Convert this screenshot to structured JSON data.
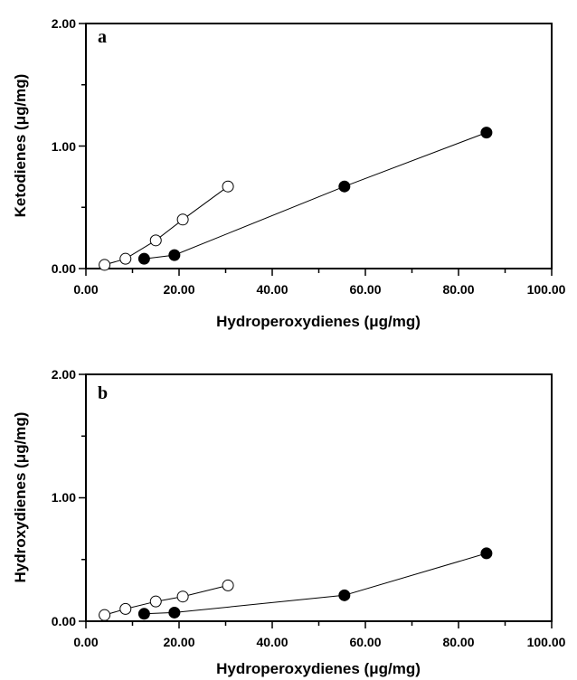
{
  "chart_data": [
    {
      "type": "scatter",
      "panel_label": "a",
      "xlabel": "Hydroperoxydienes (μg/mg)",
      "ylabel": "Ketodienes (μg/mg)",
      "xlim": [
        0,
        100
      ],
      "ylim": [
        0,
        2
      ],
      "xticks": [
        "0.00",
        "20.00",
        "40.00",
        "60.00",
        "80.00",
        "100.00"
      ],
      "yticks": [
        "0.00",
        "1.00",
        "2.00"
      ],
      "grid": false,
      "series": [
        {
          "marker": "open-circle",
          "x": [
            4.0,
            8.5,
            15.0,
            20.8,
            30.5
          ],
          "y": [
            0.03,
            0.08,
            0.23,
            0.4,
            0.67
          ]
        },
        {
          "marker": "filled-circle",
          "x": [
            12.5,
            19.0,
            55.5,
            86.0
          ],
          "y": [
            0.08,
            0.11,
            0.67,
            1.11
          ]
        }
      ]
    },
    {
      "type": "scatter",
      "panel_label": "b",
      "xlabel": "Hydroperoxydienes (μg/mg)",
      "ylabel": "Hydroxydienes (μg/mg)",
      "xlim": [
        0,
        100
      ],
      "ylim": [
        0,
        2
      ],
      "xticks": [
        "0.00",
        "20.00",
        "40.00",
        "60.00",
        "80.00",
        "100.00"
      ],
      "yticks": [
        "0.00",
        "1.00",
        "2.00"
      ],
      "grid": false,
      "series": [
        {
          "marker": "open-circle",
          "x": [
            4.0,
            8.5,
            15.0,
            20.8,
            30.5
          ],
          "y": [
            0.05,
            0.1,
            0.16,
            0.2,
            0.29
          ]
        },
        {
          "marker": "filled-circle",
          "x": [
            12.5,
            19.0,
            55.5,
            86.0
          ],
          "y": [
            0.06,
            0.07,
            0.21,
            0.55
          ]
        }
      ]
    }
  ]
}
